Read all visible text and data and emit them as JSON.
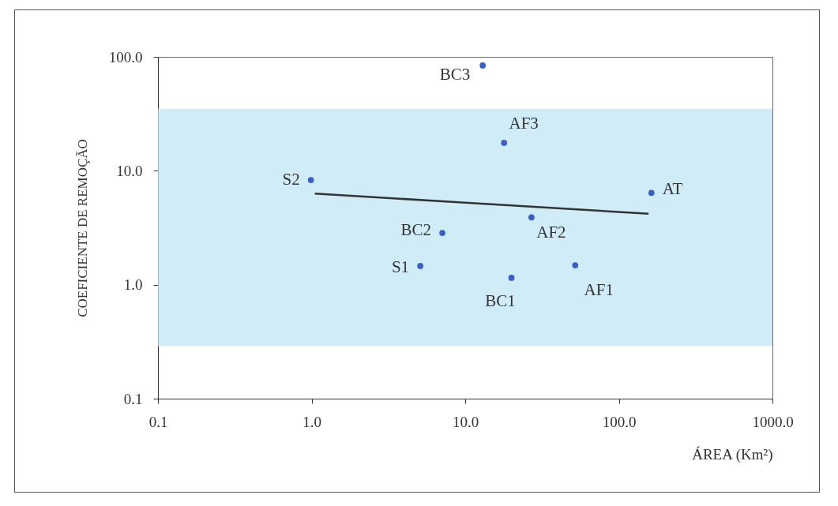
{
  "chart_data": {
    "type": "scatter",
    "xlabel": "ÁREA (Km²)",
    "ylabel": "COEFICIENTE DE REMOÇÃO",
    "log": "xy",
    "xlim": [
      0.1,
      1000
    ],
    "xticks": [
      {
        "value": 0.1,
        "label": "0.1"
      },
      {
        "value": 1,
        "label": "1.0"
      },
      {
        "value": 10,
        "label": "10.0"
      },
      {
        "value": 100,
        "label": "100.0"
      },
      {
        "value": 1000,
        "label": "1000.0"
      }
    ],
    "ylim": [
      0.1,
      100
    ],
    "yticks": [
      {
        "value": 0.1,
        "label": "0.1"
      },
      {
        "value": 1,
        "label": "1.0"
      },
      {
        "value": 10,
        "label": "10.0"
      },
      {
        "value": 100,
        "label": "100.0"
      }
    ],
    "grid": false,
    "series": [
      {
        "marker": "circle",
        "color": "#3a5fc8",
        "x": [
          0.99,
          7.1,
          5.1,
          13,
          17.9,
          163,
          27,
          52,
          20
        ],
        "values": [
          8.3,
          2.85,
          1.46,
          84,
          17.6,
          6.4,
          3.9,
          1.48,
          1.15
        ]
      },
      {
        "type": "line",
        "color": "#333333",
        "x": [
          1.05,
          156
        ],
        "values": [
          6.3,
          4.2
        ]
      }
    ],
    "bands": [
      {
        "axis": "y",
        "from": 0.29,
        "to": 35,
        "color": "#bfe5f4"
      }
    ],
    "annotations": [
      {
        "text": "S2",
        "x": 0.99,
        "y": 8.3
      },
      {
        "text": "BC2",
        "x": 7.1,
        "y": 2.85
      },
      {
        "text": "S1",
        "x": 5.1,
        "y": 1.46
      },
      {
        "text": "BC3",
        "x": 13,
        "y": 84
      },
      {
        "text": "AF3",
        "x": 17.9,
        "y": 17.6
      },
      {
        "text": "AT",
        "x": 163,
        "y": 6.4
      },
      {
        "text": "AF2",
        "x": 27,
        "y": 3.9
      },
      {
        "text": "AF1",
        "x": 52,
        "y": 1.48
      },
      {
        "text": "BC1",
        "x": 20,
        "y": 1.15
      }
    ]
  }
}
